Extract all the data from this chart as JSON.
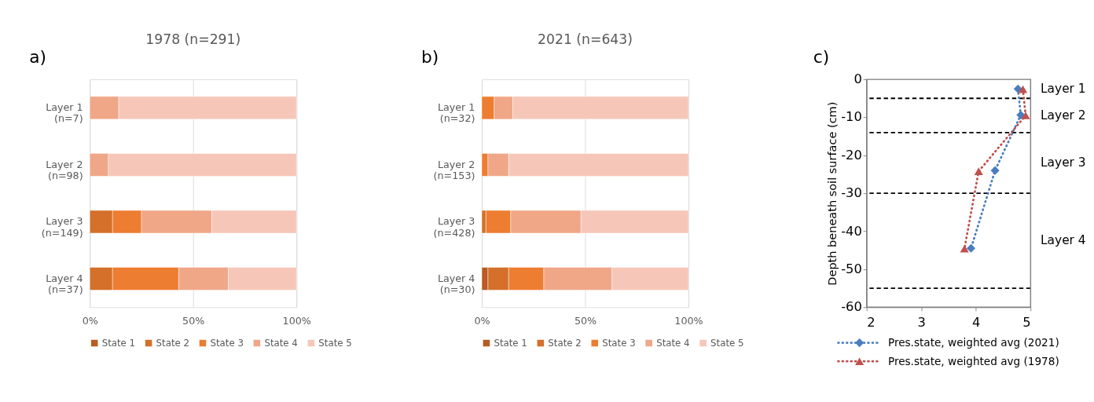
{
  "chart_data": [
    {
      "type": "bar",
      "orientation": "horizontal",
      "stacked": true,
      "title": "1978 (n=291)",
      "annotations": [
        "a)"
      ],
      "categories": [
        "Layer 1\n(n=7)",
        "Layer 2\n(n=98)",
        "Layer 3\n(n=149)",
        "Layer 4\n(n=37)"
      ],
      "series": [
        {
          "name": "State 1",
          "color": "#b85c22",
          "values": [
            null,
            null,
            null,
            null
          ]
        },
        {
          "name": "State 2",
          "color": "#d4702a",
          "values": [
            null,
            null,
            11,
            11
          ]
        },
        {
          "name": "State 3",
          "color": "#ed7d31",
          "values": [
            null,
            null,
            14,
            32
          ]
        },
        {
          "name": "State 4",
          "color": "#f0a788",
          "values": [
            14,
            9,
            34,
            24
          ]
        },
        {
          "name": "State 5",
          "color": "#f6c7b8",
          "values": [
            86,
            91,
            41,
            33
          ]
        }
      ],
      "xlim": [
        0,
        100
      ],
      "xticks": [
        {
          "value": 0,
          "label": "0%"
        },
        {
          "value": 50,
          "label": "50%"
        },
        {
          "value": 100,
          "label": "100%"
        }
      ],
      "grid": "x",
      "legend": "bottom"
    },
    {
      "type": "bar",
      "orientation": "horizontal",
      "stacked": true,
      "title": "2021 (n=643)",
      "annotations": [
        "b)"
      ],
      "categories": [
        "Layer 1\n(n=32)",
        "Layer 2\n(n=153)",
        "Layer 3\n(n=428)",
        "Layer 4\n(n=30)"
      ],
      "series": [
        {
          "name": "State 1",
          "color": "#b85c22",
          "values": [
            null,
            null,
            null,
            3
          ]
        },
        {
          "name": "State 2",
          "color": "#d4702a",
          "values": [
            null,
            null,
            2,
            10
          ]
        },
        {
          "name": "State 3",
          "color": "#ed7d31",
          "values": [
            6,
            3,
            12,
            17
          ]
        },
        {
          "name": "State 4",
          "color": "#f0a788",
          "values": [
            9,
            10,
            34,
            33
          ]
        },
        {
          "name": "State 5",
          "color": "#f6c7b8",
          "values": [
            85,
            87,
            52,
            37
          ]
        }
      ],
      "xlim": [
        0,
        100
      ],
      "xticks": [
        {
          "value": 0,
          "label": "0%"
        },
        {
          "value": 50,
          "label": "50%"
        },
        {
          "value": 100,
          "label": "100%"
        }
      ],
      "grid": "x",
      "legend": "bottom"
    },
    {
      "type": "line",
      "line_style": "dotted",
      "ylabel": "Depth beneath soil surface (cm)",
      "annotations": [
        "c)",
        "Layer 1",
        "Layer 2",
        "Layer 3",
        "Layer 4"
      ],
      "series": [
        {
          "name": "Pres.state, weighted avg (2021)",
          "color": "#4a7ebf",
          "marker": "diamond",
          "x": [
            4.77,
            4.82,
            4.35,
            3.91
          ],
          "values": [
            -2.5,
            -9.4,
            -24.0,
            -44.5
          ]
        },
        {
          "name": "Pres.state, weighted avg (1978)",
          "color": "#c0504d",
          "marker": "triangle",
          "x": [
            4.86,
            4.91,
            4.05,
            3.79
          ],
          "values": [
            -2.6,
            -9.5,
            -24.2,
            -44.6
          ]
        }
      ],
      "xlim": [
        2,
        5
      ],
      "xticks": [
        2,
        3,
        4,
        5
      ],
      "ylim": [
        -60,
        0
      ],
      "yticks": [
        -60,
        -50,
        -40,
        -30,
        -20,
        -10,
        0
      ],
      "ref_lines": [
        {
          "axis": "y",
          "value": -5,
          "line_style": "dashed",
          "color": "#000000"
        },
        {
          "axis": "y",
          "value": -14,
          "line_style": "dashed",
          "color": "#000000"
        },
        {
          "axis": "y",
          "value": -30,
          "line_style": "dashed",
          "color": "#000000"
        },
        {
          "axis": "y",
          "value": -55,
          "line_style": "dashed",
          "color": "#000000"
        }
      ],
      "grid": false,
      "legend": "bottom"
    }
  ]
}
